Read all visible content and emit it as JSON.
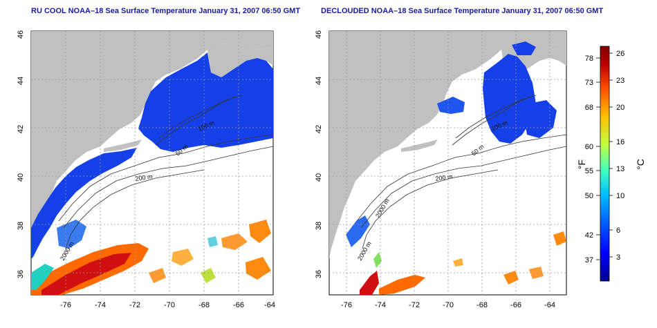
{
  "panels": {
    "left": {
      "title": "RU COOL NOAA–18 Sea Surface Temperature January 31, 2007 06:50 GMT"
    },
    "right": {
      "title": "DECLOUDED NOAA–18 Sea Surface Temperature January 31, 2007 06:50 GMT"
    }
  },
  "axes": {
    "x_ticks": [
      "-76",
      "-74",
      "-72",
      "-70",
      "-68",
      "-66",
      "-64"
    ],
    "y_ticks": [
      "46",
      "44",
      "42",
      "40",
      "38",
      "36"
    ],
    "lon_range": [
      -77,
      -63
    ],
    "lat_range": [
      35,
      46
    ],
    "grid": "dotted"
  },
  "isobath_labels": {
    "label_50": "50 m",
    "label_100": "100 m",
    "label_200": "200 m",
    "label_2000": "2000 m"
  },
  "colorbar": {
    "unit_f": "°F",
    "unit_c": "°C",
    "f_ticks": [
      "78",
      "73",
      "68",
      "60",
      "55",
      "50",
      "42",
      "37"
    ],
    "c_ticks": [
      "26",
      "23",
      "20",
      "16",
      "13",
      "10",
      "6",
      "3"
    ],
    "colors": [
      "#00008f",
      "#0000ff",
      "#0060ff",
      "#00c0ff",
      "#40ffbf",
      "#c0ff40",
      "#ffc000",
      "#ff5000",
      "#c00000",
      "#800000"
    ]
  },
  "colors": {
    "land": "#c0c0c0",
    "cold": "#1540e8",
    "warm": "#ff6a00",
    "hot": "#d01010",
    "title": "#1a1aa0"
  }
}
